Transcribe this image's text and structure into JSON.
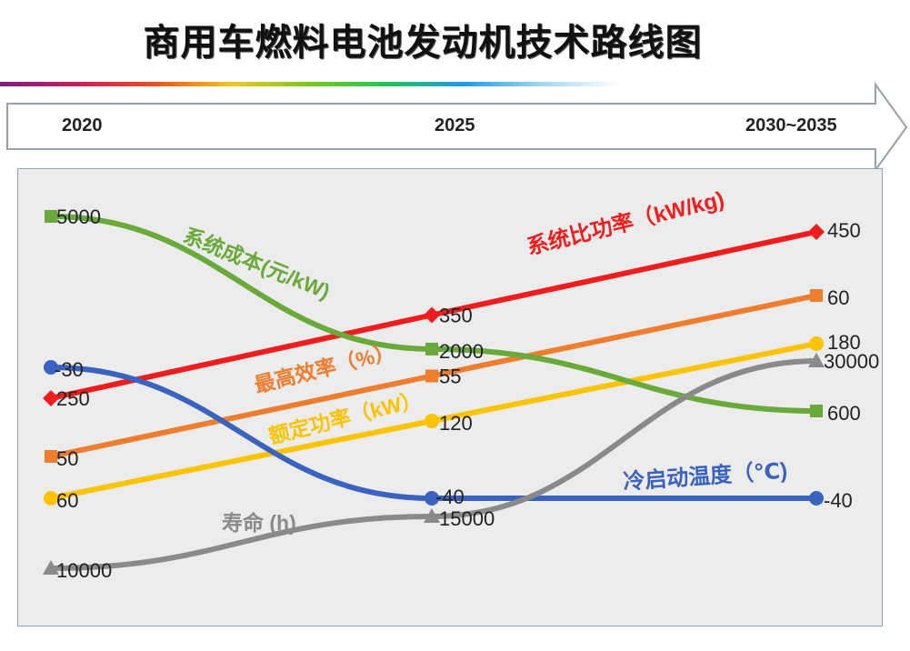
{
  "header": {
    "title": "商用车燃料电池发动机技术路线图"
  },
  "timeline": {
    "years": [
      "2020",
      "2025",
      "2030~2035"
    ]
  },
  "colors": {
    "power_density": "#f21c1c",
    "efficiency": "#ef7d2e",
    "rated_power": "#fcc300",
    "cost": "#6aaa3a",
    "cold_start": "#3a62c0",
    "lifetime": "#8a8a8a",
    "frame_bg": "#ececec",
    "frame_border": "#8fa3c7"
  },
  "chart_data": {
    "type": "line",
    "categories": [
      "2020",
      "2025",
      "2030~2035"
    ],
    "series": [
      {
        "key": "power_density",
        "name": "系统比功率（kW/kg)",
        "values": [
          250,
          350,
          450
        ],
        "labels": [
          "250",
          "350",
          "450"
        ]
      },
      {
        "key": "efficiency",
        "name": "最高效率（%）",
        "values": [
          50,
          55,
          60
        ],
        "labels": [
          "50",
          "55",
          "60"
        ]
      },
      {
        "key": "rated_power",
        "name": "额定功率（kW）",
        "values": [
          60,
          120,
          180
        ],
        "labels": [
          "60",
          "120",
          "180"
        ]
      },
      {
        "key": "cost",
        "name": "系统成本(元/kW)",
        "values": [
          5000,
          2000,
          600
        ],
        "labels": [
          "5000",
          "2000",
          "600"
        ]
      },
      {
        "key": "cold_start",
        "name": "冷启动温度（℃)",
        "values": [
          -30,
          -40,
          -40
        ],
        "labels": [
          "-30",
          "-40",
          "-40"
        ]
      },
      {
        "key": "lifetime",
        "name": "寿命 (h)",
        "values": [
          10000,
          15000,
          30000
        ],
        "labels": [
          "10000",
          "15000",
          "30000"
        ]
      }
    ]
  }
}
